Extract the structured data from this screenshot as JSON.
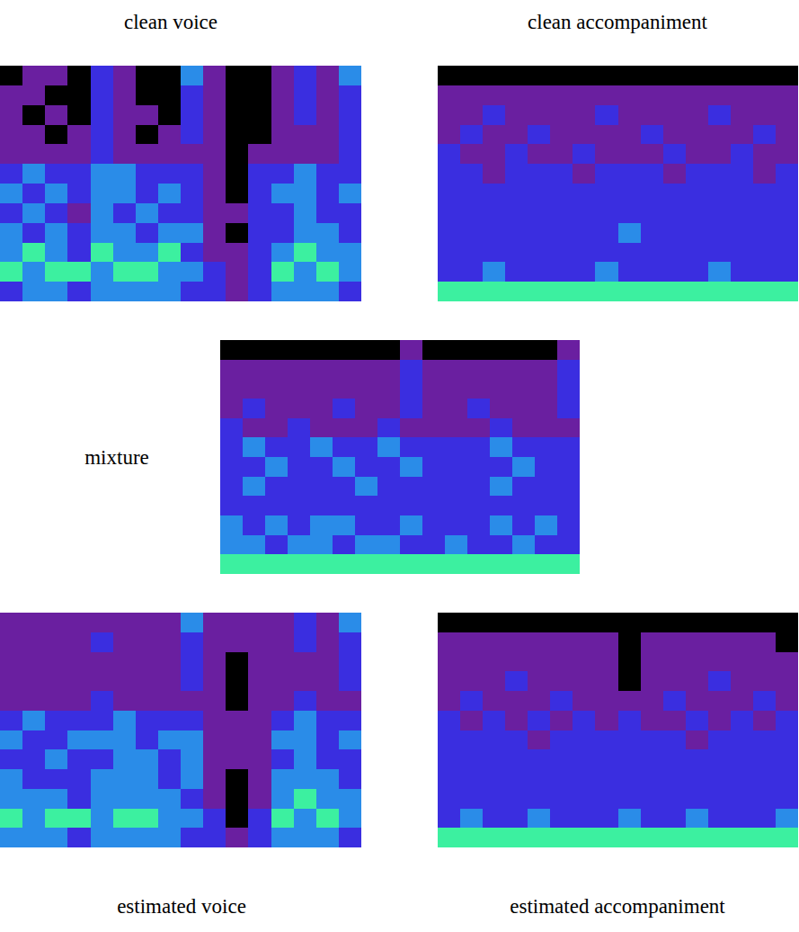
{
  "chart_data": [
    {
      "type": "heatmap",
      "title": "clean voice",
      "tick_labels": false,
      "cells": [
        [
          0,
          1,
          1,
          0,
          2,
          1,
          0,
          0,
          3,
          1,
          0,
          0,
          1,
          2,
          1,
          3
        ],
        [
          1,
          1,
          0,
          0,
          2,
          1,
          0,
          0,
          2,
          1,
          0,
          0,
          1,
          2,
          1,
          2
        ],
        [
          1,
          0,
          1,
          0,
          2,
          1,
          1,
          0,
          2,
          1,
          0,
          0,
          1,
          2,
          1,
          2
        ],
        [
          1,
          1,
          0,
          1,
          2,
          1,
          0,
          1,
          2,
          1,
          0,
          0,
          1,
          1,
          1,
          2
        ],
        [
          1,
          1,
          1,
          1,
          2,
          1,
          1,
          1,
          1,
          1,
          0,
          1,
          1,
          1,
          1,
          2
        ],
        [
          2,
          3,
          2,
          2,
          3,
          3,
          2,
          2,
          2,
          1,
          0,
          2,
          2,
          3,
          2,
          2
        ],
        [
          3,
          2,
          3,
          2,
          3,
          3,
          2,
          3,
          2,
          1,
          0,
          2,
          3,
          3,
          2,
          3
        ],
        [
          2,
          3,
          2,
          1,
          3,
          2,
          3,
          2,
          2,
          1,
          1,
          2,
          2,
          3,
          2,
          2
        ],
        [
          3,
          2,
          3,
          2,
          3,
          3,
          2,
          3,
          3,
          1,
          0,
          2,
          2,
          3,
          3,
          2
        ],
        [
          3,
          4,
          3,
          2,
          4,
          3,
          3,
          4,
          2,
          1,
          1,
          2,
          3,
          4,
          3,
          3
        ],
        [
          4,
          3,
          4,
          4,
          3,
          4,
          4,
          3,
          3,
          2,
          1,
          2,
          4,
          3,
          4,
          3
        ],
        [
          2,
          3,
          3,
          2,
          3,
          3,
          3,
          3,
          2,
          2,
          1,
          2,
          3,
          3,
          3,
          2
        ]
      ]
    },
    {
      "type": "heatmap",
      "title": "clean accompaniment",
      "tick_labels": false,
      "cells": [
        [
          0,
          0,
          0,
          0,
          0,
          0,
          0,
          0,
          0,
          0,
          0,
          0,
          0,
          0,
          0,
          0
        ],
        [
          1,
          1,
          1,
          1,
          1,
          1,
          1,
          1,
          1,
          1,
          1,
          1,
          1,
          1,
          1,
          1
        ],
        [
          1,
          1,
          2,
          1,
          1,
          1,
          1,
          2,
          1,
          1,
          1,
          1,
          2,
          1,
          1,
          1
        ],
        [
          1,
          2,
          1,
          1,
          2,
          1,
          1,
          1,
          1,
          2,
          1,
          1,
          1,
          1,
          2,
          1
        ],
        [
          2,
          1,
          1,
          2,
          1,
          1,
          2,
          1,
          1,
          1,
          2,
          1,
          1,
          2,
          1,
          1
        ],
        [
          2,
          2,
          1,
          2,
          2,
          2,
          1,
          2,
          2,
          2,
          1,
          2,
          2,
          2,
          1,
          2
        ],
        [
          2,
          2,
          2,
          2,
          2,
          2,
          2,
          2,
          2,
          2,
          2,
          2,
          2,
          2,
          2,
          2
        ],
        [
          2,
          2,
          2,
          2,
          2,
          2,
          2,
          2,
          2,
          2,
          2,
          2,
          2,
          2,
          2,
          2
        ],
        [
          2,
          2,
          2,
          2,
          2,
          2,
          2,
          2,
          3,
          2,
          2,
          2,
          2,
          2,
          2,
          2
        ],
        [
          2,
          2,
          2,
          2,
          2,
          2,
          2,
          2,
          2,
          2,
          2,
          2,
          2,
          2,
          2,
          2
        ],
        [
          2,
          2,
          3,
          2,
          2,
          2,
          2,
          3,
          2,
          2,
          2,
          2,
          3,
          2,
          2,
          2
        ],
        [
          4,
          4,
          4,
          4,
          4,
          4,
          4,
          4,
          4,
          4,
          4,
          4,
          4,
          4,
          4,
          4
        ]
      ]
    },
    {
      "type": "heatmap",
      "title": "mixture",
      "tick_labels": false,
      "cells": [
        [
          0,
          0,
          0,
          0,
          0,
          0,
          0,
          0,
          1,
          0,
          0,
          0,
          0,
          0,
          0,
          1
        ],
        [
          1,
          1,
          1,
          1,
          1,
          1,
          1,
          1,
          2,
          1,
          1,
          1,
          1,
          1,
          1,
          2
        ],
        [
          1,
          1,
          1,
          1,
          1,
          1,
          1,
          1,
          2,
          1,
          1,
          1,
          1,
          1,
          1,
          2
        ],
        [
          1,
          2,
          1,
          1,
          1,
          2,
          1,
          1,
          2,
          1,
          1,
          2,
          1,
          1,
          1,
          2
        ],
        [
          2,
          1,
          1,
          2,
          1,
          1,
          1,
          2,
          1,
          1,
          1,
          1,
          2,
          1,
          1,
          1
        ],
        [
          2,
          3,
          2,
          2,
          3,
          2,
          2,
          3,
          2,
          2,
          2,
          2,
          3,
          2,
          2,
          2
        ],
        [
          2,
          2,
          3,
          2,
          2,
          3,
          2,
          2,
          3,
          2,
          2,
          2,
          2,
          3,
          2,
          2
        ],
        [
          2,
          3,
          2,
          2,
          2,
          2,
          3,
          2,
          2,
          2,
          2,
          2,
          3,
          2,
          2,
          2
        ],
        [
          2,
          2,
          2,
          2,
          2,
          2,
          2,
          2,
          2,
          2,
          2,
          2,
          2,
          2,
          2,
          2
        ],
        [
          3,
          2,
          3,
          2,
          3,
          3,
          2,
          2,
          3,
          2,
          2,
          2,
          3,
          2,
          3,
          2
        ],
        [
          3,
          3,
          2,
          3,
          3,
          2,
          3,
          3,
          2,
          2,
          3,
          2,
          2,
          3,
          2,
          2
        ],
        [
          4,
          4,
          4,
          4,
          4,
          4,
          4,
          4,
          4,
          4,
          4,
          4,
          4,
          4,
          4,
          4
        ]
      ]
    },
    {
      "type": "heatmap",
      "title": "estimated voice",
      "tick_labels": false,
      "cells": [
        [
          1,
          1,
          1,
          1,
          1,
          1,
          1,
          1,
          3,
          1,
          1,
          1,
          1,
          2,
          1,
          3
        ],
        [
          1,
          1,
          1,
          1,
          2,
          1,
          1,
          1,
          2,
          1,
          1,
          1,
          1,
          2,
          1,
          2
        ],
        [
          1,
          1,
          1,
          1,
          1,
          1,
          1,
          1,
          2,
          1,
          0,
          1,
          1,
          1,
          1,
          2
        ],
        [
          1,
          1,
          1,
          1,
          1,
          1,
          1,
          1,
          2,
          1,
          0,
          1,
          1,
          1,
          1,
          2
        ],
        [
          1,
          1,
          1,
          1,
          2,
          1,
          1,
          1,
          1,
          1,
          0,
          1,
          1,
          2,
          1,
          1
        ],
        [
          2,
          3,
          2,
          2,
          2,
          3,
          2,
          2,
          2,
          1,
          1,
          1,
          2,
          3,
          2,
          2
        ],
        [
          3,
          2,
          2,
          3,
          3,
          3,
          2,
          3,
          3,
          1,
          1,
          1,
          3,
          3,
          2,
          3
        ],
        [
          2,
          2,
          3,
          2,
          2,
          3,
          3,
          2,
          3,
          1,
          1,
          1,
          2,
          3,
          2,
          2
        ],
        [
          3,
          2,
          2,
          2,
          3,
          3,
          3,
          2,
          3,
          1,
          0,
          1,
          3,
          3,
          3,
          2
        ],
        [
          3,
          3,
          3,
          2,
          3,
          3,
          3,
          3,
          2,
          1,
          0,
          1,
          3,
          4,
          3,
          3
        ],
        [
          4,
          3,
          4,
          4,
          3,
          4,
          4,
          3,
          3,
          2,
          0,
          2,
          4,
          3,
          4,
          3
        ],
        [
          3,
          3,
          3,
          2,
          3,
          3,
          3,
          3,
          2,
          2,
          1,
          2,
          3,
          3,
          3,
          2
        ]
      ]
    },
    {
      "type": "heatmap",
      "title": "estimated accompaniment",
      "tick_labels": false,
      "cells": [
        [
          0,
          0,
          0,
          0,
          0,
          0,
          0,
          0,
          0,
          0,
          0,
          0,
          0,
          0,
          0,
          0
        ],
        [
          1,
          1,
          1,
          1,
          1,
          1,
          1,
          1,
          0,
          1,
          1,
          1,
          1,
          1,
          1,
          0
        ],
        [
          1,
          1,
          1,
          1,
          1,
          1,
          1,
          1,
          0,
          1,
          1,
          1,
          1,
          1,
          1,
          1
        ],
        [
          1,
          1,
          1,
          2,
          1,
          1,
          1,
          1,
          0,
          1,
          1,
          1,
          2,
          1,
          1,
          1
        ],
        [
          1,
          2,
          1,
          1,
          1,
          2,
          1,
          1,
          1,
          1,
          2,
          1,
          1,
          1,
          2,
          1
        ],
        [
          2,
          1,
          2,
          1,
          2,
          1,
          2,
          1,
          2,
          1,
          1,
          2,
          1,
          2,
          1,
          2
        ],
        [
          2,
          2,
          2,
          2,
          1,
          2,
          2,
          2,
          2,
          2,
          2,
          1,
          2,
          2,
          2,
          2
        ],
        [
          2,
          2,
          2,
          2,
          2,
          2,
          2,
          2,
          2,
          2,
          2,
          2,
          2,
          2,
          2,
          2
        ],
        [
          2,
          2,
          2,
          2,
          2,
          2,
          2,
          2,
          2,
          2,
          2,
          2,
          2,
          2,
          2,
          2
        ],
        [
          2,
          2,
          2,
          2,
          2,
          2,
          2,
          2,
          2,
          2,
          2,
          2,
          2,
          2,
          2,
          2
        ],
        [
          2,
          3,
          2,
          2,
          3,
          2,
          2,
          2,
          3,
          2,
          2,
          3,
          2,
          2,
          2,
          3
        ],
        [
          4,
          4,
          4,
          4,
          4,
          4,
          4,
          4,
          4,
          4,
          4,
          4,
          4,
          4,
          4,
          4
        ]
      ]
    }
  ]
}
